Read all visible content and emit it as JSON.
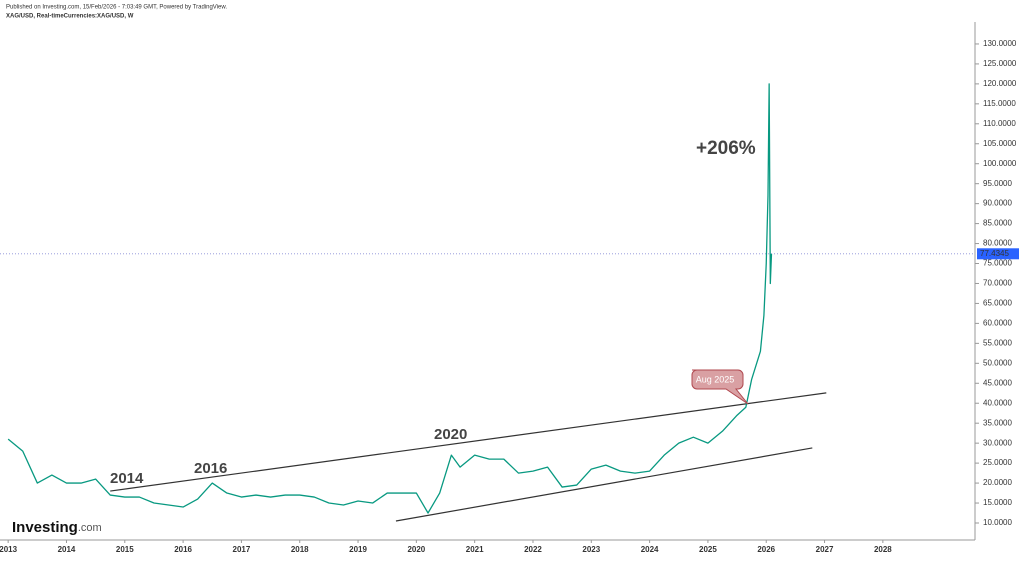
{
  "header": {
    "published": "Published on Investing.com, 15/Feb/2026 - 7:03:49 GMT, Powered by TradingView.",
    "symbol": "XAG/USD, Real-timeCurrencies:XAG/USD, W"
  },
  "logo": {
    "brand": "Investing",
    "suffix": ".com"
  },
  "chart_data": {
    "type": "line",
    "series": [
      {
        "name": "XAG/USD",
        "color": "#089981",
        "x": [
          2013.0,
          2013.25,
          2013.5,
          2013.75,
          2014.0,
          2014.25,
          2014.5,
          2014.75,
          2015.0,
          2015.25,
          2015.5,
          2015.75,
          2016.0,
          2016.25,
          2016.5,
          2016.75,
          2017.0,
          2017.25,
          2017.5,
          2017.75,
          2018.0,
          2018.25,
          2018.5,
          2018.75,
          2019.0,
          2019.25,
          2019.5,
          2019.75,
          2020.0,
          2020.2,
          2020.4,
          2020.6,
          2020.75,
          2021.0,
          2021.25,
          2021.5,
          2021.75,
          2022.0,
          2022.25,
          2022.5,
          2022.75,
          2023.0,
          2023.25,
          2023.5,
          2023.75,
          2024.0,
          2024.25,
          2024.5,
          2024.75,
          2025.0,
          2025.25,
          2025.5,
          2025.65,
          2025.75,
          2025.9,
          2025.96,
          2026.0,
          2026.03,
          2026.05,
          2026.07,
          2026.09
        ],
        "values": [
          31,
          28,
          20,
          22,
          20,
          20,
          21,
          17,
          16.5,
          16.5,
          15,
          14.5,
          14,
          16,
          20,
          17.5,
          16.5,
          17,
          16.5,
          17,
          17,
          16.5,
          15,
          14.5,
          15.5,
          15,
          17.5,
          17.5,
          17.5,
          12.5,
          17.5,
          27,
          24,
          27,
          26,
          26,
          22.5,
          23,
          24,
          19,
          19.5,
          23.5,
          24.5,
          23,
          22.5,
          23,
          27,
          30,
          31.5,
          30,
          33,
          37,
          39,
          46,
          53,
          62,
          75,
          92,
          120,
          70,
          77.4345
        ]
      }
    ],
    "current_price": {
      "value": 77.4345,
      "label": "77.4345"
    },
    "trendlines": [
      {
        "x": [
          2014.75,
          2027.03
        ],
        "y": [
          18.0,
          42.6
        ]
      },
      {
        "x": [
          2019.65,
          2026.79
        ],
        "y": [
          10.5,
          28.8
        ]
      }
    ],
    "annotations": [
      "2014",
      "2016",
      "2020",
      "+206%",
      "Aug 2025"
    ],
    "xlim": [
      2012.86,
      2029.58
    ],
    "xticks": [
      2013,
      2014,
      2015,
      2016,
      2017,
      2018,
      2019,
      2020,
      2021,
      2022,
      2023,
      2024,
      2025,
      2026,
      2027,
      2028
    ],
    "ylim": [
      5.74,
      135.5
    ],
    "yticks": [
      {
        "value": 10,
        "label": "10.0000"
      },
      {
        "value": 15,
        "label": "15.0000"
      },
      {
        "value": 20,
        "label": "20.0000"
      },
      {
        "value": 25,
        "label": "25.0000"
      },
      {
        "value": 30,
        "label": "30.0000"
      },
      {
        "value": 35,
        "label": "35.0000"
      },
      {
        "value": 40,
        "label": "40.0000"
      },
      {
        "value": 45,
        "label": "45.0000"
      },
      {
        "value": 50,
        "label": "50.0000"
      },
      {
        "value": 55,
        "label": "55.0000"
      },
      {
        "value": 60,
        "label": "60.0000"
      },
      {
        "value": 65,
        "label": "65.0000"
      },
      {
        "value": 70,
        "label": "70.0000"
      },
      {
        "value": 75,
        "label": "75.0000"
      },
      {
        "value": 80,
        "label": "80.0000"
      },
      {
        "value": 85,
        "label": "85.0000"
      },
      {
        "value": 90,
        "label": "90.0000"
      },
      {
        "value": 95,
        "label": "95.0000"
      },
      {
        "value": 100,
        "label": "100.0000"
      },
      {
        "value": 105,
        "label": "105.0000"
      },
      {
        "value": 110,
        "label": "110.0000"
      },
      {
        "value": 115,
        "label": "115.0000"
      },
      {
        "value": 120,
        "label": "120.0000"
      },
      {
        "value": 125,
        "label": "125.0000"
      },
      {
        "value": 130,
        "label": "130.0000"
      }
    ],
    "grid": false
  }
}
